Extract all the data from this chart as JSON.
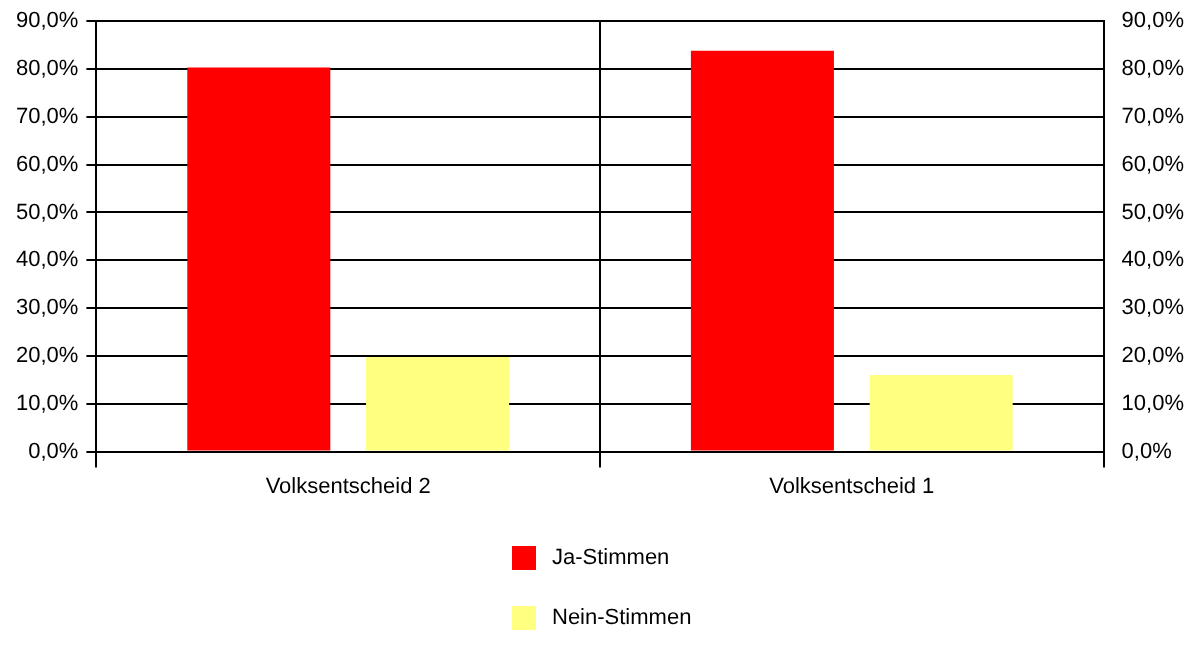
{
  "chart_data": {
    "type": "bar",
    "categories": [
      "Volksentscheid 2",
      "Volksentscheid 1"
    ],
    "series": [
      {
        "name": "Ja-Stimmen",
        "color": "#ff0000",
        "values": [
          80.3,
          83.8
        ]
      },
      {
        "name": "Nein-Stimmen",
        "color": "#ffff80",
        "values": [
          19.8,
          16.0
        ]
      }
    ],
    "ylim": [
      0,
      90
    ],
    "yticks": [
      {
        "value": 0,
        "label": "0,0%"
      },
      {
        "value": 10,
        "label": "10,0%"
      },
      {
        "value": 20,
        "label": "20,0%"
      },
      {
        "value": 30,
        "label": "30,0%"
      },
      {
        "value": 40,
        "label": "40,0%"
      },
      {
        "value": 50,
        "label": "50,0%"
      },
      {
        "value": 60,
        "label": "60,0%"
      },
      {
        "value": 70,
        "label": "70,0%"
      },
      {
        "value": 80,
        "label": "80,0%"
      },
      {
        "value": 90,
        "label": "90,0%"
      }
    ],
    "y2lim": [
      0,
      90
    ],
    "y2ticks": [
      {
        "value": 0,
        "label": "0,0%"
      },
      {
        "value": 10,
        "label": "10,0%"
      },
      {
        "value": 20,
        "label": "20,0%"
      },
      {
        "value": 30,
        "label": "30,0%"
      },
      {
        "value": 40,
        "label": "40,0%"
      },
      {
        "value": 50,
        "label": "50,0%"
      },
      {
        "value": 60,
        "label": "60,0%"
      },
      {
        "value": 70,
        "label": "70,0%"
      },
      {
        "value": 80,
        "label": "80,0%"
      },
      {
        "value": 90,
        "label": "90,0%"
      }
    ],
    "grid": true,
    "legend": "bottom"
  }
}
